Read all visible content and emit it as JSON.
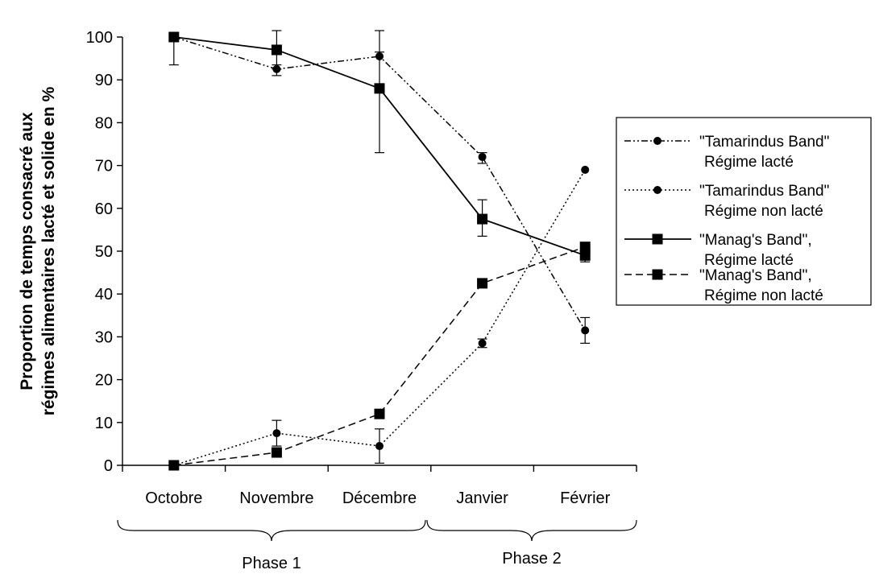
{
  "chart_data": {
    "type": "line",
    "ylabel_line1": "Proportion de temps consacré aux",
    "ylabel_line2": "régimes alimentaires lacté et solide en %",
    "ylim": [
      0,
      100
    ],
    "yticks": [
      "0",
      "10",
      "20",
      "30",
      "40",
      "50",
      "60",
      "70",
      "80",
      "90",
      "100"
    ],
    "categories": [
      "Octobre",
      "Novembre",
      "Décembre",
      "Janvier",
      "Février"
    ],
    "phases": [
      {
        "label": "Phase 1",
        "from": 0,
        "to": 2
      },
      {
        "label": "Phase 2",
        "from": 3,
        "to": 4
      }
    ],
    "legend_position": "right",
    "grid": false,
    "series": [
      {
        "name_line1": "\"Tamarindus Band\"",
        "name_line2": "Régime lacté",
        "marker": "circle",
        "dash": "dashdotdot",
        "values": [
          100,
          92.5,
          95.5,
          72,
          31.5
        ],
        "err_low": [
          null,
          91,
          null,
          70.5,
          28.5
        ],
        "err_high": [
          null,
          93.5,
          96.5,
          73,
          34.5
        ]
      },
      {
        "name_line1": "\"Tamarindus Band\"",
        "name_line2": "Régime non lacté",
        "marker": "circle",
        "dash": "dotted",
        "values": [
          0,
          7.5,
          4.5,
          28.5,
          69
        ],
        "err_low": [
          null,
          4.5,
          0.5,
          27.5,
          null
        ],
        "err_high": [
          null,
          10.5,
          8.5,
          29.5,
          null
        ]
      },
      {
        "name_line1": "\"Manag's Band\",",
        "name_line2": "Régime lacté",
        "marker": "square",
        "dash": "solid",
        "values": [
          100,
          97,
          88,
          57.5,
          49
        ],
        "err_low": [
          93.5,
          92.5,
          73,
          53.5,
          47.5
        ],
        "err_high": [
          null,
          101.5,
          101.5,
          62,
          null
        ]
      },
      {
        "name_line1": "\"Manag's Band\",",
        "name_line2": "Régime non lacté",
        "marker": "square",
        "dash": "dashed",
        "values": [
          0,
          3,
          12,
          42.5,
          51
        ],
        "err_low": [
          null,
          null,
          null,
          null,
          null
        ],
        "err_high": [
          null,
          null,
          null,
          null,
          null
        ]
      }
    ]
  }
}
